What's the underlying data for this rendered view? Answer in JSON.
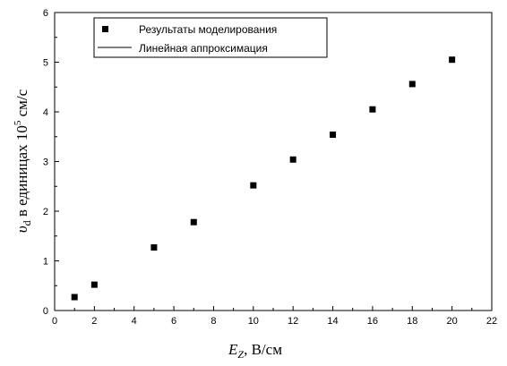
{
  "chart_data": {
    "type": "scatter",
    "title": "",
    "xlabel_var": "E",
    "xlabel_sub": "Z",
    "xlabel_unit": "В/см",
    "ylabel_var": "υ",
    "ylabel_sub": "d",
    "ylabel_text": "в единицах 10",
    "ylabel_exp": "5",
    "ylabel_unit": "см/с",
    "xlim": [
      0,
      22
    ],
    "ylim": [
      0,
      6
    ],
    "xticks": [
      0,
      2,
      4,
      6,
      8,
      10,
      12,
      14,
      16,
      18,
      20,
      22
    ],
    "yticks": [
      0,
      1,
      2,
      3,
      4,
      5,
      6
    ],
    "grid": false,
    "legend_position": "top-left",
    "series": [
      {
        "name": "Результаты моделирования",
        "marker": "square",
        "x": [
          1,
          2,
          5,
          7,
          10,
          12,
          14,
          16,
          18,
          20
        ],
        "y": [
          0.27,
          0.52,
          1.27,
          1.78,
          2.52,
          3.04,
          3.54,
          4.05,
          4.56,
          5.05
        ]
      },
      {
        "name": "Линейная аппроксимация",
        "marker": "line",
        "x": [],
        "y": []
      }
    ]
  },
  "colors": {
    "marker": "#000000",
    "axis": "#000000"
  }
}
